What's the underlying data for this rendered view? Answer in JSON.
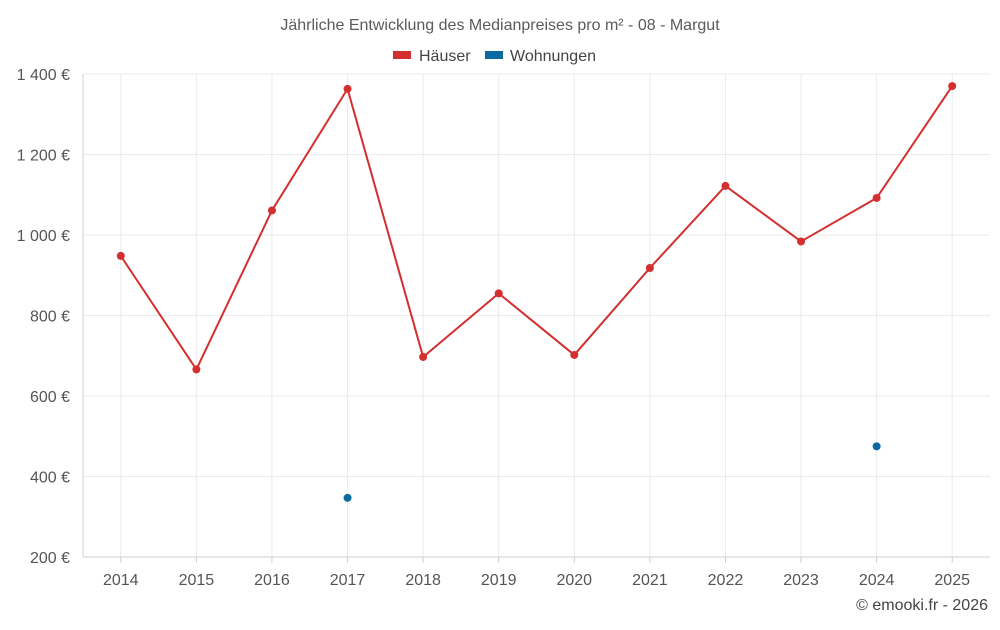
{
  "chart_data": {
    "type": "line",
    "title": "Jährliche Entwicklung des Medianpreises pro m² - 08 - Margut",
    "categories": [
      "2014",
      "2015",
      "2016",
      "2017",
      "2018",
      "2019",
      "2020",
      "2021",
      "2022",
      "2023",
      "2024",
      "2025"
    ],
    "series": [
      {
        "name": "Häuser",
        "color": "#d32f2f",
        "values": [
          948,
          666,
          1061,
          1363,
          697,
          855,
          702,
          918,
          1122,
          984,
          1092,
          1370
        ]
      },
      {
        "name": "Wohnungen",
        "color": "#0b6aa1",
        "values": [
          null,
          null,
          null,
          347,
          null,
          null,
          null,
          null,
          null,
          null,
          475,
          null
        ]
      }
    ],
    "y_ticks": [
      "200 €",
      "400 €",
      "600 €",
      "800 €",
      "1 000 €",
      "1 200 €",
      "1 400 €"
    ],
    "ylim": [
      200,
      1400
    ],
    "grid": true,
    "legend_position": "top-center"
  },
  "credit": "© emooki.fr - 2026"
}
